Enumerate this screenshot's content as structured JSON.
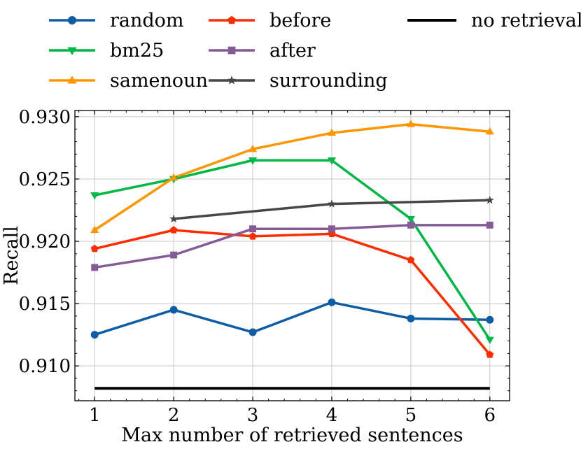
{
  "chart_data": {
    "type": "line",
    "title": "",
    "xlabel": "Max number of retrieved sentences",
    "ylabel": "Recall",
    "xlim": [
      0.75,
      6.25
    ],
    "ylim": [
      0.9072,
      0.9305
    ],
    "xticks": [
      1,
      2,
      3,
      4,
      5,
      6
    ],
    "xtick_labels": [
      "1",
      "2",
      "3",
      "4",
      "5",
      "6"
    ],
    "yticks": [
      0.91,
      0.915,
      0.92,
      0.925,
      0.93
    ],
    "ytick_labels": [
      "0.910",
      "0.915",
      "0.920",
      "0.925",
      "0.930"
    ],
    "grid": true,
    "legend_position": "top (above plot, 3 columns)",
    "series": [
      {
        "name": "random",
        "color": "#0C5DA5",
        "marker": "circle",
        "x": [
          1,
          2,
          3,
          4,
          5,
          6
        ],
        "values": [
          0.9125,
          0.9145,
          0.9127,
          0.9151,
          0.9138,
          0.9137
        ]
      },
      {
        "name": "bm25",
        "color": "#00B945",
        "marker": "triangle-down",
        "x": [
          1,
          2,
          3,
          4,
          5,
          6
        ],
        "values": [
          0.9237,
          0.925,
          0.9265,
          0.9265,
          0.9218,
          0.9121
        ]
      },
      {
        "name": "samenoun",
        "color": "#FF9500",
        "marker": "triangle-up",
        "x": [
          1,
          2,
          3,
          4,
          5,
          6
        ],
        "values": [
          0.9209,
          0.9251,
          0.9274,
          0.9287,
          0.9294,
          0.9288
        ]
      },
      {
        "name": "before",
        "color": "#FF2C00",
        "marker": "pentagon",
        "x": [
          1,
          2,
          3,
          4,
          5,
          6
        ],
        "values": [
          0.9194,
          0.9209,
          0.9204,
          0.9206,
          0.9185,
          0.9109
        ]
      },
      {
        "name": "after",
        "color": "#845B97",
        "marker": "square",
        "x": [
          1,
          2,
          3,
          4,
          5,
          6
        ],
        "values": [
          0.9179,
          0.9189,
          0.921,
          0.921,
          0.9213,
          0.9213
        ]
      },
      {
        "name": "surrounding",
        "color": "#474747",
        "marker": "star",
        "x": [
          2,
          4,
          6
        ],
        "values": [
          0.9218,
          0.923,
          0.9233
        ]
      },
      {
        "name": "no retrieval",
        "color": "#000000",
        "marker": "none",
        "x": [
          1,
          6
        ],
        "values": [
          0.9082,
          0.9082
        ]
      }
    ]
  }
}
